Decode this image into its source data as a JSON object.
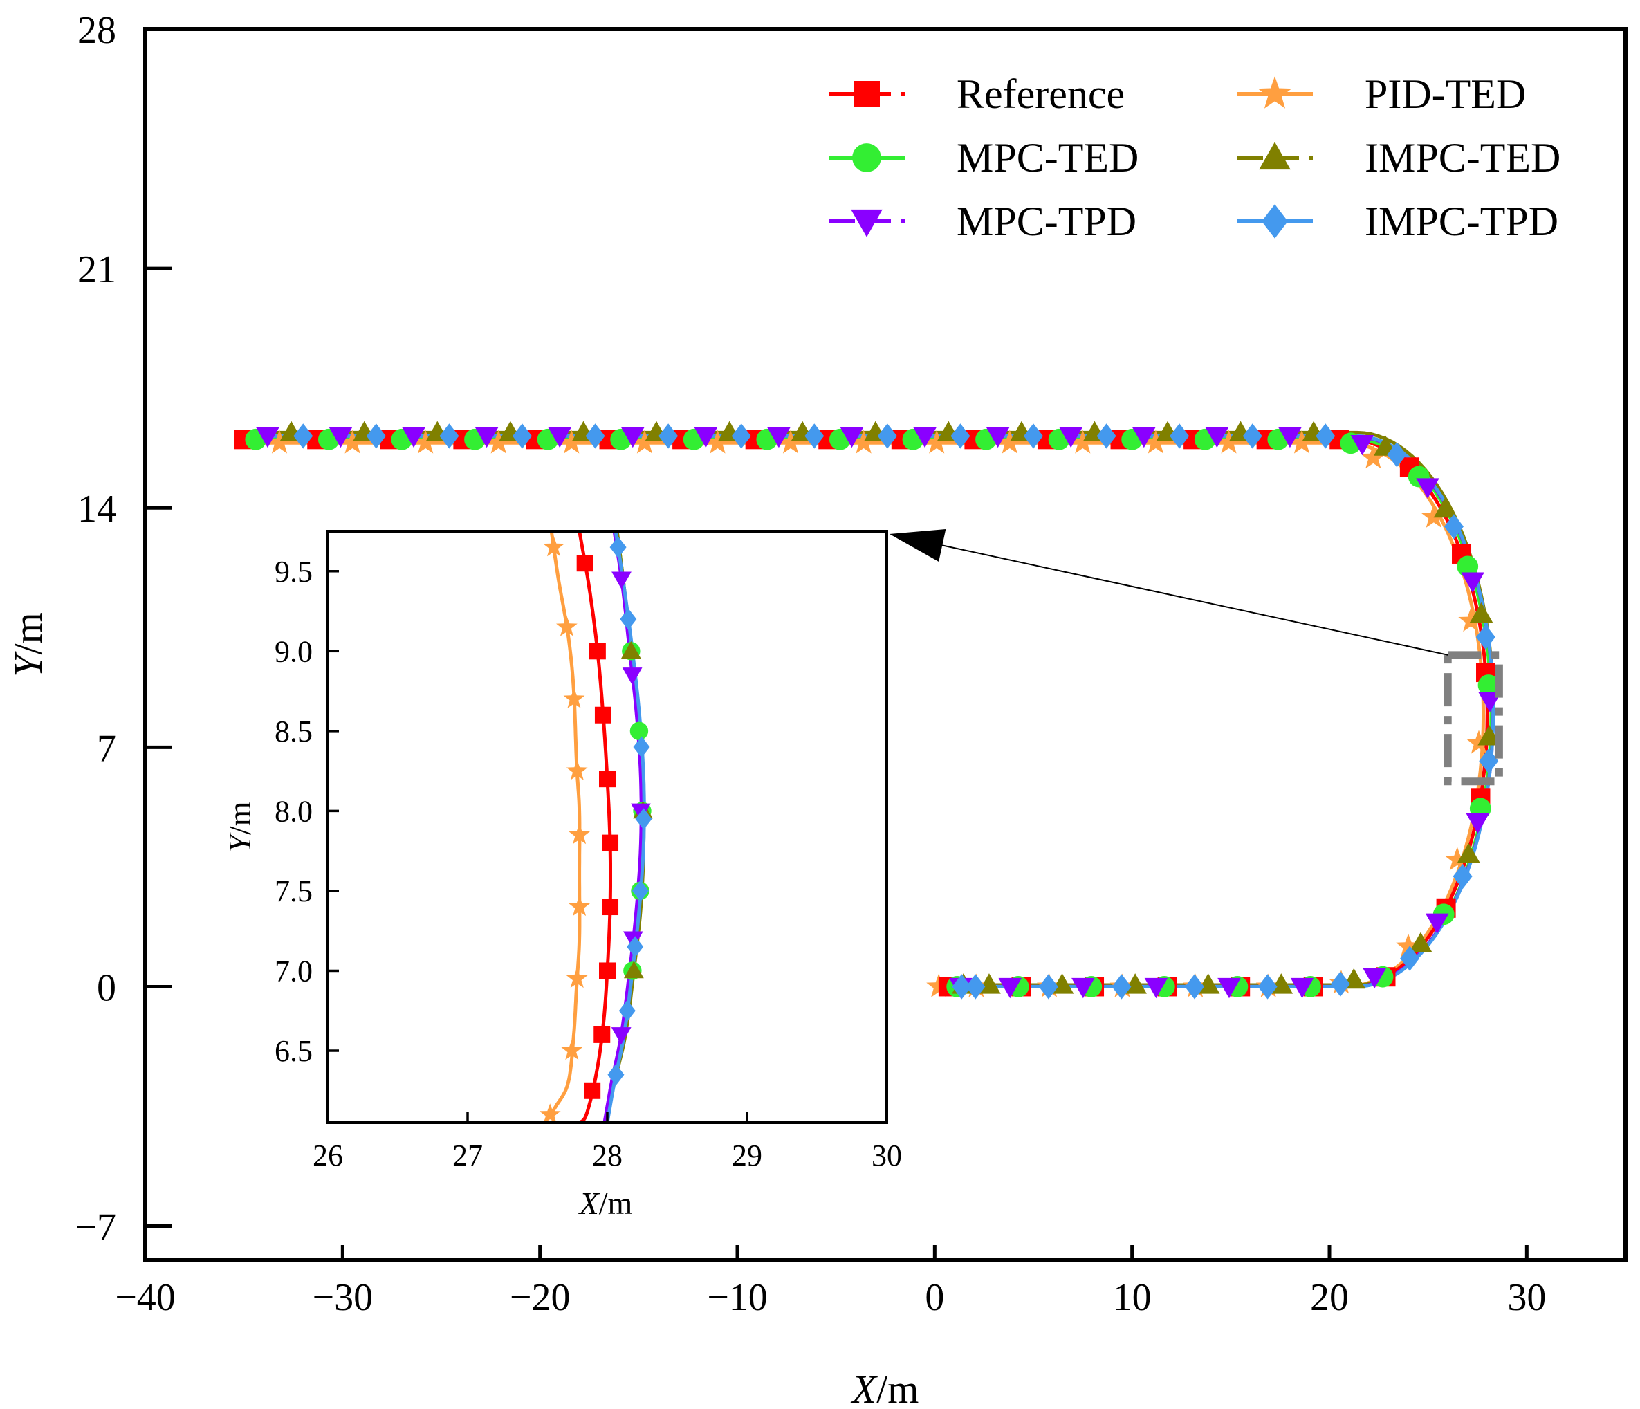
{
  "chart_data": [
    {
      "type": "line",
      "xlabel": "X/m",
      "ylabel": "Y/m",
      "xlim": [
        -40,
        35
      ],
      "ylim": [
        -8,
        28
      ],
      "xticks": [
        -40,
        -30,
        -20,
        -10,
        0,
        10,
        20,
        30
      ],
      "yticks": [
        -7,
        0,
        7,
        14,
        21,
        28
      ],
      "xtick_labels": [
        "−40",
        "−30",
        "−20",
        "−10",
        "0",
        "10",
        "20",
        "30"
      ],
      "ytick_labels": [
        "−7",
        "0",
        "7",
        "14",
        "21",
        "28"
      ],
      "legend_position": "top-right, two columns",
      "series": [
        {
          "name": "Reference",
          "color": "#ff0000",
          "marker": "square",
          "dash": "dashed",
          "y_top": 16.0,
          "x_start_top": -35,
          "x_turn_top": 21.0,
          "cx": 21.0,
          "x_right": 28.0,
          "x_bottom_turn": 21.0,
          "y_bottom": 0.0,
          "x_end": 0
        },
        {
          "name": "MPC-TED",
          "color": "#33ee33",
          "marker": "circle",
          "dash": "solid",
          "y_top": 16.0,
          "x_start_top": -35,
          "x_turn_top": 21.3,
          "cx": 21.3,
          "x_right": 28.2,
          "x_bottom_turn": 21.3,
          "y_bottom": 0.0,
          "x_end": 0
        },
        {
          "name": "MPC-TPD",
          "color": "#8a00ff",
          "marker": "triangle-down",
          "dash": "dashed",
          "y_top": 16.1,
          "x_start_top": -35,
          "x_turn_top": 21.2,
          "cx": 21.2,
          "x_right": 28.3,
          "x_bottom_turn": 21.2,
          "y_bottom": 0.0,
          "x_end": 0
        },
        {
          "name": "PID-TED",
          "color": "#ff9f40",
          "marker": "star",
          "dash": "solid",
          "y_top": 15.9,
          "x_start_top": -35,
          "x_turn_top": 20.8,
          "cx": 20.8,
          "x_right": 27.8,
          "x_bottom_turn": 20.8,
          "y_bottom": 0.0,
          "x_end": 0
        },
        {
          "name": "IMPC-TED",
          "color": "#808000",
          "marker": "triangle-up",
          "dash": "dashed",
          "y_top": 16.2,
          "x_start_top": -35,
          "x_turn_top": 21.4,
          "cx": 21.4,
          "x_right": 28.3,
          "x_bottom_turn": 21.4,
          "y_bottom": 0.05,
          "x_end": 0
        },
        {
          "name": "IMPC-TPD",
          "color": "#4499ee",
          "marker": "diamond",
          "dash": "solid",
          "y_top": 16.1,
          "x_start_top": -35,
          "x_turn_top": 21.3,
          "cx": 21.3,
          "x_right": 28.3,
          "x_bottom_turn": 21.3,
          "y_bottom": 0.0,
          "x_end": 0
        }
      ]
    },
    {
      "type": "line",
      "inset": true,
      "xlabel": "X/m",
      "ylabel": "Y/m",
      "xlim": [
        26,
        30
      ],
      "ylim": [
        6.05,
        9.75
      ],
      "xticks": [
        26,
        27,
        28,
        29,
        30
      ],
      "yticks": [
        6.5,
        7.0,
        7.5,
        8.0,
        8.5,
        9.0,
        9.5
      ],
      "xtick_labels": [
        "26",
        "27",
        "28",
        "29",
        "30"
      ],
      "ytick_labels": [
        "6.5",
        "7.0",
        "7.5",
        "8.0",
        "8.5",
        "9.0",
        "9.5"
      ],
      "zoom_region_main": {
        "x": [
          26.0,
          28.6
        ],
        "y": [
          6.0,
          9.7
        ]
      },
      "series": [
        {
          "name": "PID-TED",
          "x": [
            27.6,
            27.65,
            27.72,
            27.76,
            27.78,
            27.8,
            27.8,
            27.8,
            27.78,
            27.76,
            27.72,
            27.63,
            27.55
          ],
          "y": [
            9.75,
            9.45,
            9.1,
            8.75,
            8.3,
            8.0,
            7.6,
            7.2,
            6.9,
            6.6,
            6.3,
            6.15,
            6.05
          ]
        },
        {
          "name": "Reference",
          "x": [
            27.8,
            27.87,
            27.93,
            27.97,
            28.0,
            28.02,
            28.02,
            28.0,
            27.97,
            27.92,
            27.85,
            27.8
          ],
          "y": [
            9.75,
            9.4,
            9.0,
            8.6,
            8.2,
            7.8,
            7.4,
            7.0,
            6.65,
            6.35,
            6.1,
            6.05
          ]
        },
        {
          "name": "MPC-TED",
          "x": [
            28.07,
            28.12,
            28.17,
            28.22,
            28.25,
            28.25,
            28.23,
            28.18,
            28.12,
            28.05,
            27.99
          ],
          "y": [
            9.75,
            9.4,
            9.0,
            8.6,
            8.2,
            7.8,
            7.4,
            7.0,
            6.6,
            6.3,
            6.05
          ]
        },
        {
          "name": "IMPC-TED",
          "x": [
            28.07,
            28.12,
            28.17,
            28.22,
            28.25,
            28.26,
            28.24,
            28.19,
            28.13,
            28.05,
            27.99
          ],
          "y": [
            9.75,
            9.4,
            9.0,
            8.6,
            8.2,
            7.8,
            7.4,
            7.0,
            6.6,
            6.3,
            6.05
          ]
        },
        {
          "name": "MPC-TPD",
          "x": [
            28.05,
            28.11,
            28.16,
            28.21,
            28.24,
            28.24,
            28.21,
            28.16,
            28.1,
            28.03,
            27.98
          ],
          "y": [
            9.75,
            9.4,
            9.0,
            8.6,
            8.2,
            7.8,
            7.4,
            7.0,
            6.6,
            6.3,
            6.05
          ]
        },
        {
          "name": "IMPC-TPD",
          "x": [
            28.06,
            28.12,
            28.18,
            28.23,
            28.26,
            28.26,
            28.23,
            28.18,
            28.12,
            28.05,
            28.0
          ],
          "y": [
            9.75,
            9.4,
            9.0,
            8.6,
            8.2,
            7.8,
            7.4,
            7.0,
            6.6,
            6.3,
            6.05
          ]
        }
      ]
    }
  ]
}
